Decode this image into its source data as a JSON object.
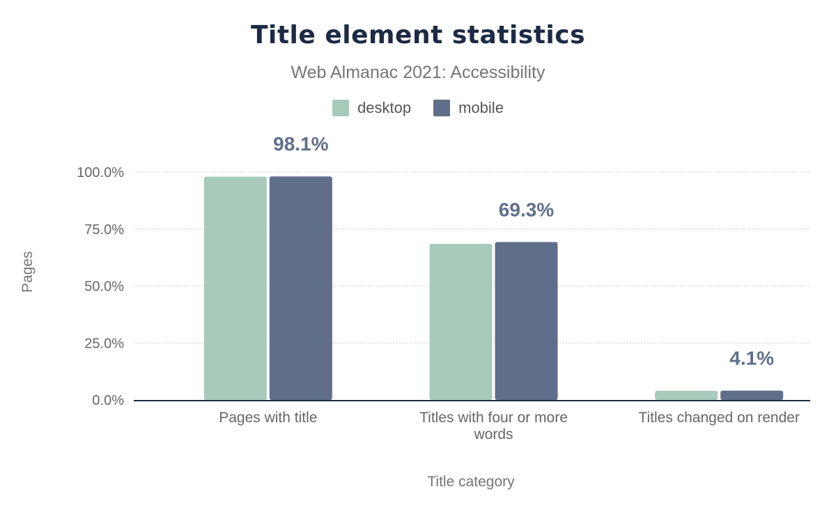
{
  "chart_data": {
    "type": "bar",
    "title": "Title element statistics",
    "subtitle": "Web Almanac 2021: Accessibility",
    "xlabel": "Title category",
    "ylabel": "Pages",
    "categories": [
      "Pages with title",
      "Titles with four or more words",
      "Titles changed on render"
    ],
    "series": [
      {
        "name": "desktop",
        "color": "#a8cabb",
        "values": [
          98.0,
          68.5,
          4.0
        ]
      },
      {
        "name": "mobile",
        "color": "#5f6f8a",
        "values": [
          98.1,
          69.3,
          4.1
        ]
      }
    ],
    "data_labels": [
      "98.1%",
      "69.3%",
      "4.1%"
    ],
    "yticks": [
      "0.0%",
      "25.0%",
      "50.0%",
      "75.0%",
      "100.0%"
    ],
    "ylim": [
      0,
      100
    ],
    "grid": true,
    "legend": "top"
  }
}
